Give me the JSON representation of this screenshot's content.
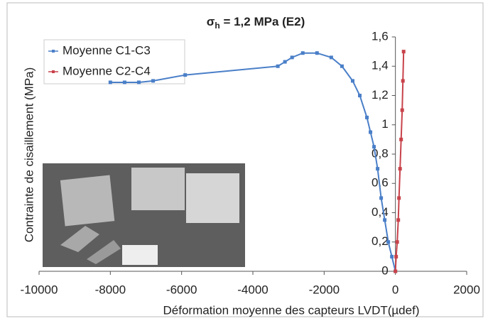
{
  "chart_data": {
    "type": "line",
    "title_symbol": "σ",
    "title_subscript": "h",
    "title": " = 1,2 MPa (E2)",
    "x_label": "Déformation moyenne des capteurs LVDT(µdef)",
    "y_label": "Contrainte de cisaillement (MPa)",
    "xlim": [
      -10000,
      2000
    ],
    "xticks": [
      -10000,
      -8000,
      -6000,
      -4000,
      -2000,
      0,
      2000
    ],
    "ylim": [
      0,
      1.6
    ],
    "yticks": [
      0,
      {
        "value": 0.2,
        "label": "0,2"
      },
      {
        "value": 0.4,
        "label": "0,4"
      },
      {
        "value": 0.6,
        "label": "0,6"
      },
      {
        "value": 0.8,
        "label": "0,8"
      },
      1,
      {
        "value": 1.2,
        "label": "1,2"
      },
      {
        "value": 1.4,
        "label": "1,4"
      },
      {
        "value": 1.6,
        "label": "1,6"
      }
    ],
    "series": [
      {
        "name": "Moyenne C1-C3",
        "color": "#4a7fc8",
        "x": [
          0,
          -100,
          -200,
          -300,
          -400,
          -500,
          -600,
          -700,
          -800,
          -1000,
          -1200,
          -1500,
          -1800,
          -2200,
          -2600,
          -2900,
          -3100,
          -3300,
          -5900,
          -6800,
          -7200,
          -7600,
          -8000
        ],
        "values": [
          0,
          0.1,
          0.2,
          0.35,
          0.5,
          0.7,
          0.85,
          0.95,
          1.05,
          1.2,
          1.3,
          1.4,
          1.46,
          1.49,
          1.49,
          1.46,
          1.43,
          1.4,
          1.34,
          1.3,
          1.29,
          1.29,
          1.29
        ]
      },
      {
        "name": "Moyenne C2-C4",
        "color": "#c8424a",
        "x": [
          0,
          20,
          50,
          80,
          100,
          130,
          160,
          190,
          210,
          230
        ],
        "values": [
          0,
          0.1,
          0.2,
          0.35,
          0.5,
          0.7,
          0.9,
          1.1,
          1.3,
          1.5
        ]
      }
    ]
  }
}
